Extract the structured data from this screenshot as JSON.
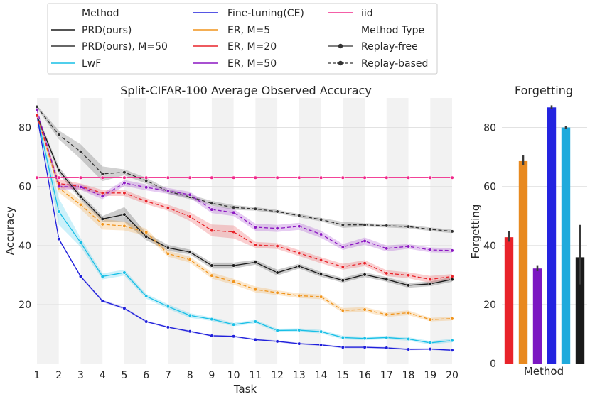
{
  "legend": {
    "method_header": "Method",
    "type_header": "Method Type",
    "methods": [
      {
        "label": "PRD(ours)",
        "color": "#1a1a1a"
      },
      {
        "label": "PRD(ours), M=50",
        "color": "#333333"
      },
      {
        "label": "LwF",
        "color": "#17bfe6"
      },
      {
        "label": "Fine-tuning(CE)",
        "color": "#1f1fdb"
      },
      {
        "label": "ER, M=5",
        "color": "#f0941c"
      },
      {
        "label": "ER, M=20",
        "color": "#e8232a"
      },
      {
        "label": "ER, M=50",
        "color": "#8b17c2"
      },
      {
        "label": "iid",
        "color": "#f0288a"
      }
    ],
    "types": [
      {
        "label": "Replay-free",
        "style": "solid"
      },
      {
        "label": "Replay-based",
        "style": "dashed"
      }
    ]
  },
  "chart_data": [
    {
      "type": "line",
      "title": "Split-CIFAR-100 Average Observed Accuracy",
      "xlabel": "Task",
      "ylabel": "Accuracy",
      "x": [
        1,
        2,
        3,
        4,
        5,
        6,
        7,
        8,
        9,
        10,
        11,
        12,
        13,
        14,
        15,
        16,
        17,
        18,
        19,
        20
      ],
      "xlim": [
        1,
        20
      ],
      "ylim": [
        0,
        90
      ],
      "yticks": [
        20,
        40,
        60,
        80
      ],
      "grid": true,
      "series": [
        {
          "name": "PRD(ours)",
          "style": "solid",
          "color": "#1a1a1a",
          "values": [
            84,
            65.5,
            56.5,
            49,
            50.5,
            43,
            39.2,
            37.8,
            33.2,
            33.2,
            34.3,
            30.8,
            33,
            30.2,
            28.2,
            30.1,
            28.5,
            26.5,
            27,
            28.5
          ],
          "band": [
            0.8,
            1.2,
            1.0,
            1.0,
            2.5,
            1.2,
            1.0,
            0.8,
            1.0,
            1.0,
            0.8,
            1.0,
            0.8,
            0.8,
            0.8,
            0.8,
            0.8,
            0.8,
            0.8,
            0.8
          ]
        },
        {
          "name": "PRD(ours), M=50",
          "style": "dashed",
          "color": "#333333",
          "values": [
            87,
            77.5,
            71.8,
            64.3,
            64.8,
            62,
            58.3,
            56.5,
            54.3,
            52.9,
            52.4,
            51.5,
            50.1,
            48.8,
            47,
            47,
            46.7,
            46.4,
            45.5,
            44.8
          ],
          "band": [
            0.5,
            1.5,
            2.5,
            2.5,
            1.0,
            1.0,
            0.8,
            0.8,
            0.8,
            0.8,
            0.6,
            0.6,
            0.6,
            0.6,
            1.0,
            0.6,
            0.6,
            0.6,
            0.6,
            0.6
          ]
        },
        {
          "name": "LwF",
          "style": "solid",
          "color": "#17bfe6",
          "values": [
            84,
            51.5,
            41,
            29.5,
            30.8,
            22.8,
            19.3,
            16.3,
            15,
            13.2,
            14.2,
            11.2,
            11.3,
            10.8,
            8.8,
            8.5,
            8.8,
            8.3,
            7,
            7.8
          ],
          "band": [
            0.5,
            4.5,
            1.5,
            1.0,
            1.0,
            0.8,
            0.8,
            0.8,
            0.6,
            0.6,
            0.6,
            0.6,
            0.6,
            0.6,
            0.6,
            0.6,
            0.6,
            0.6,
            0.6,
            0.6
          ]
        },
        {
          "name": "Fine-tuning(CE)",
          "style": "solid",
          "color": "#1f1fdb",
          "values": [
            84,
            42.2,
            29.5,
            21.2,
            18.7,
            14.2,
            12.3,
            10.9,
            9.4,
            9.2,
            8.1,
            7.5,
            6.7,
            6.3,
            5.5,
            5.5,
            5.3,
            4.8,
            4.9,
            4.5
          ],
          "band": [
            0.4,
            0.5,
            0.4,
            0.4,
            0.4,
            0.3,
            0.3,
            0.3,
            0.3,
            0.3,
            0.3,
            0.3,
            0.3,
            0.3,
            0.3,
            0.3,
            0.3,
            0.3,
            0.3,
            0.3
          ]
        },
        {
          "name": "ER, M=5",
          "style": "dashed",
          "color": "#f0941c",
          "values": [
            84,
            59.5,
            53.8,
            47.2,
            46.6,
            44.5,
            37.2,
            35.2,
            29.8,
            27.7,
            25.1,
            24,
            23,
            22.6,
            18,
            18.3,
            16.6,
            17.2,
            14.9,
            15.2
          ],
          "band": [
            0.5,
            1.5,
            1.5,
            1.8,
            1.5,
            1.2,
            1.0,
            1.0,
            1.0,
            1.0,
            1.0,
            0.8,
            0.8,
            0.8,
            0.8,
            0.8,
            0.8,
            0.8,
            0.6,
            0.6
          ]
        },
        {
          "name": "ER, M=20",
          "style": "dashed",
          "color": "#e8232a",
          "values": [
            84,
            61,
            60,
            57.8,
            57.8,
            55,
            52.8,
            49.8,
            45.1,
            44.6,
            40.2,
            39.8,
            37.4,
            35,
            32.8,
            34,
            30.6,
            29.9,
            28.5,
            29.5
          ],
          "band": [
            0.5,
            1.5,
            1.0,
            1.0,
            1.0,
            1.0,
            1.0,
            1.5,
            2.0,
            2.2,
            1.0,
            1.0,
            1.0,
            1.0,
            1.0,
            1.0,
            1.0,
            1.0,
            1.2,
            0.8
          ]
        },
        {
          "name": "ER, M=50",
          "style": "dashed",
          "color": "#8b17c2",
          "values": [
            86,
            60,
            59.8,
            56.7,
            61.2,
            59.7,
            58.5,
            57.2,
            52.2,
            51.2,
            46.2,
            45.8,
            46.5,
            43.8,
            39.5,
            41.5,
            39,
            39.7,
            38.5,
            38.3
          ],
          "band": [
            0.5,
            1.0,
            1.0,
            1.0,
            1.0,
            1.0,
            1.0,
            1.0,
            1.2,
            1.2,
            1.2,
            1.2,
            1.2,
            1.2,
            1.0,
            1.2,
            1.0,
            0.8,
            0.8,
            0.8
          ]
        },
        {
          "name": "iid",
          "style": "solid",
          "color": "#f0288a",
          "values": [
            63,
            63,
            63,
            63,
            63,
            63,
            63,
            63,
            63,
            63,
            63,
            63,
            63,
            63,
            63,
            63,
            63,
            63,
            63,
            63
          ]
        }
      ]
    },
    {
      "type": "bar",
      "title": "Forgetting",
      "xlabel": "Method",
      "ylabel": "Forgetting",
      "ylim": [
        0,
        90
      ],
      "yticks": [
        0,
        20,
        40,
        60,
        80
      ],
      "bars": [
        {
          "name": "ER, M=20",
          "value": 42.8,
          "err_low": 41.3,
          "err_high": 45.0,
          "color": "#e8232a"
        },
        {
          "name": "ER, M=5",
          "value": 68.6,
          "err_low": 67.3,
          "err_high": 70.5,
          "color": "#e8891f"
        },
        {
          "name": "ER, M=50",
          "value": 32.2,
          "err_low": 31.3,
          "err_high": 33.3,
          "color": "#7b17c2"
        },
        {
          "name": "Fine-tuning(CE)",
          "value": 86.8,
          "err_low": 86.3,
          "err_high": 87.5,
          "color": "#2323e0"
        },
        {
          "name": "LwF",
          "value": 80.0,
          "err_low": 79.5,
          "err_high": 80.6,
          "color": "#1faadc"
        },
        {
          "name": "PRD(ours)",
          "value": 36.0,
          "err_low": 26.8,
          "err_high": 47.0,
          "color": "#1a1a1a"
        }
      ]
    }
  ]
}
